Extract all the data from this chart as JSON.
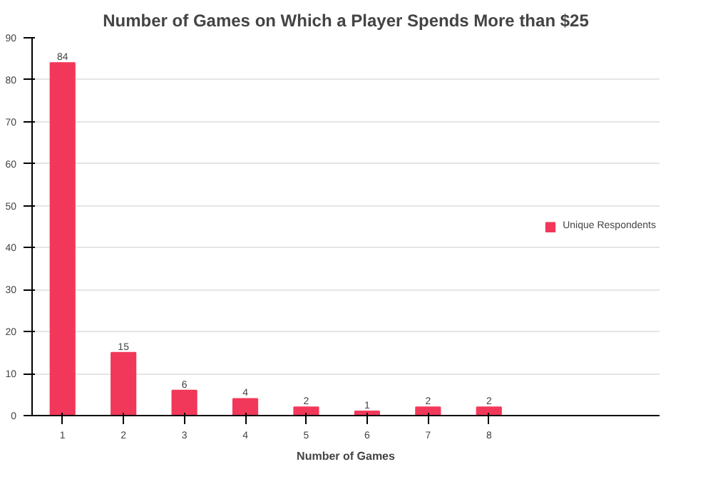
{
  "chart_data": {
    "type": "bar",
    "title": "Number of Games on Which a Player Spends More than $25",
    "xlabel": "Number of Games",
    "categories": [
      "1",
      "2",
      "3",
      "4",
      "5",
      "6",
      "7",
      "8"
    ],
    "series": [
      {
        "name": "Unique Respondents",
        "color": "#f2385a",
        "values": [
          84,
          15,
          6,
          4,
          2,
          1,
          2,
          2
        ]
      }
    ],
    "ylim": [
      0,
      90
    ],
    "yticks": [
      0,
      10,
      20,
      30,
      40,
      50,
      60,
      70,
      80,
      90
    ],
    "grid": "y",
    "legend": "right",
    "data_labels": true
  }
}
